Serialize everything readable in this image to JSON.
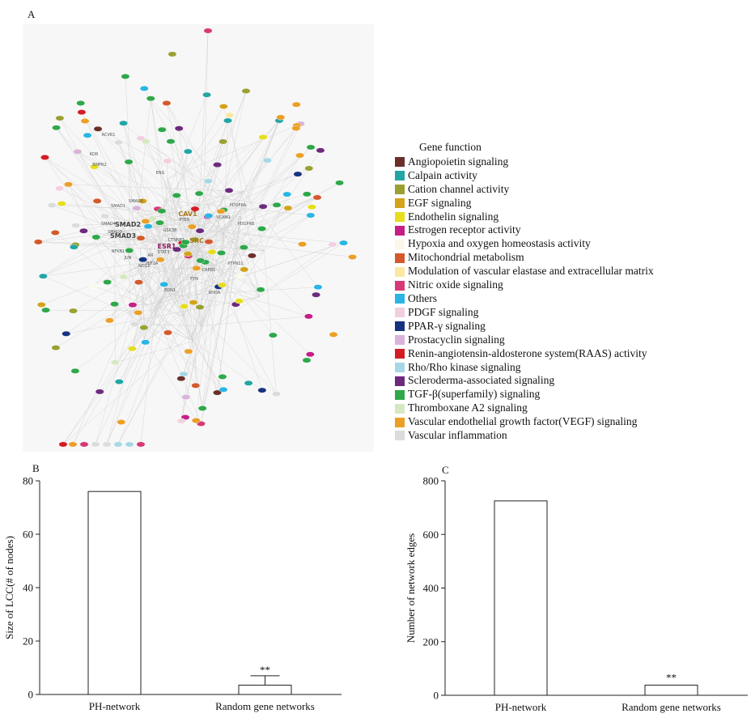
{
  "panels": {
    "a": "A",
    "b": "B",
    "c": "C"
  },
  "network": {
    "node_labels": [
      "ACVR1",
      "KDR",
      "BMPR2",
      "ENG",
      "SMAD4",
      "SMAD9",
      "SMAD1",
      "SMAD2",
      "SMAD3",
      "SMAD5",
      "ESR1",
      "CAV1",
      "SRC",
      "CTNNB1",
      "STAT3",
      "EDN1",
      "FYN",
      "VCAM1",
      "PDGFRA",
      "PDGFRB",
      "PTEN",
      "NOS3",
      "JUN",
      "AR",
      "GSK3B",
      "CREB1",
      "NFKB1",
      "RHOA",
      "HIF1A",
      "PTPN11"
    ]
  },
  "legend": {
    "title": "Gene function",
    "items": [
      {
        "label": "Angiopoietin signaling",
        "color": "#6b2f2a"
      },
      {
        "label": "Calpain activity",
        "color": "#23a5a5"
      },
      {
        "label": "Cation channel activity",
        "color": "#9aa032"
      },
      {
        "label": "EGF signaling",
        "color": "#d4a31b"
      },
      {
        "label": "Endothelin signaling",
        "color": "#e7dd1c"
      },
      {
        "label": "Estrogen receptor activity",
        "color": "#c61d86"
      },
      {
        "label": "Hypoxia and oxygen homeostasis activity",
        "color": "#fbf8ea"
      },
      {
        "label": "Mitochondrial metabolism",
        "color": "#d3592b"
      },
      {
        "label": "Modulation of vascular elastase and extracellular matrix",
        "color": "#fbe8a2"
      },
      {
        "label": "Nitric oxide signaling",
        "color": "#d63a76"
      },
      {
        "label": "Others",
        "color": "#2ab5e4"
      },
      {
        "label": "PDGF signaling",
        "color": "#f2cfe0"
      },
      {
        "label": "PPAR-γ signaling",
        "color": "#16337f"
      },
      {
        "label": "Prostacyclin signaling",
        "color": "#d9b4da"
      },
      {
        "label": "Renin-angiotensin-aldosterone system(RAAS) activity",
        "color": "#d41c25"
      },
      {
        "label": "Rho/Rho kinase signaling",
        "color": "#a6d7e6"
      },
      {
        "label": "Scleroderma-associated signaling",
        "color": "#6d2a7d"
      },
      {
        "label": "TGF-β(superfamily) signaling",
        "color": "#2ea84a"
      },
      {
        "label": "Thromboxane A2 signaling",
        "color": "#d5e8c1"
      },
      {
        "label": "Vascular endothelial growth factor(VEGF) signaling",
        "color": "#ec9f26"
      },
      {
        "label": "Vascular inflammation",
        "color": "#dcdcdc"
      }
    ]
  },
  "chart_data": [
    {
      "type": "bar",
      "panel": "B",
      "categories": [
        "PH-network",
        "Random gene networks"
      ],
      "values": [
        76,
        3.5
      ],
      "error": [
        0,
        3.5
      ],
      "annotations": [
        "",
        "**"
      ],
      "xlabel": "",
      "ylabel": "Size of LCC(# of nodes)",
      "ylim": [
        0,
        80
      ],
      "yticks": [
        0,
        20,
        40,
        60,
        80
      ]
    },
    {
      "type": "bar",
      "panel": "C",
      "categories": [
        "PH-network",
        "Random gene networks"
      ],
      "values": [
        725,
        38
      ],
      "error": [
        0,
        0
      ],
      "annotations": [
        "",
        "**"
      ],
      "xlabel": "",
      "ylabel": "Number of network edges",
      "ylim": [
        0,
        800
      ],
      "yticks": [
        0,
        200,
        400,
        600,
        800
      ]
    }
  ]
}
